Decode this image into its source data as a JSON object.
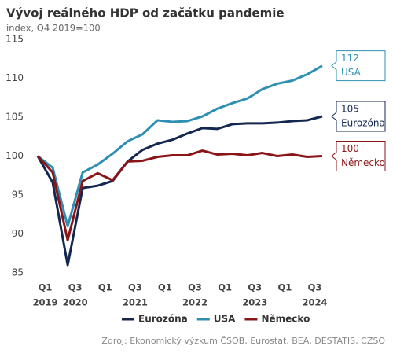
{
  "chart_data": {
    "type": "line",
    "title": "Vývoj reálného HDP od začátku pandemie",
    "subtitle": "index, Q4 2019=100",
    "source": "Zdroj: Ekonomický výzkum ČSOB, Eurostat, BEA, DESTATIS, CZSO",
    "categories": [
      null,
      "Q1",
      null,
      "Q3",
      null,
      "Q1",
      null,
      "Q3",
      null,
      "Q1",
      null,
      "Q3",
      null,
      "Q1",
      null,
      "Q3",
      null,
      "Q1",
      null,
      "Q3"
    ],
    "years": [
      null,
      "2019",
      null,
      "2020",
      null,
      null,
      null,
      "2021",
      null,
      null,
      null,
      "2022",
      null,
      null,
      null,
      "2023",
      null,
      null,
      null,
      "2024"
    ],
    "ylim": [
      85,
      115
    ],
    "yticks": [
      85,
      90,
      95,
      100,
      105,
      110,
      115
    ],
    "reference_line": 100,
    "series": [
      {
        "name": "Eurozóna",
        "color": "#14284f",
        "end_label": "105",
        "values": [
          100,
          96.6,
          86.0,
          95.9,
          96.2,
          96.8,
          99.3,
          100.8,
          101.6,
          102.1,
          102.9,
          103.6,
          103.5,
          104.1,
          104.2,
          104.2,
          104.3,
          104.5,
          104.6,
          105.1
        ]
      },
      {
        "name": "USA",
        "color": "#2f8fb3",
        "end_label": "112",
        "values": [
          100,
          98.5,
          91.0,
          97.9,
          98.9,
          100.3,
          101.9,
          102.8,
          104.6,
          104.4,
          104.5,
          105.1,
          106.1,
          106.8,
          107.4,
          108.6,
          109.3,
          109.7,
          110.5,
          111.6
        ]
      },
      {
        "name": "Německo",
        "color": "#8a1518",
        "end_label": "100",
        "values": [
          100,
          97.9,
          89.2,
          96.8,
          97.8,
          96.9,
          99.3,
          99.4,
          99.9,
          100.1,
          100.1,
          100.7,
          100.2,
          100.3,
          100.1,
          100.4,
          100.0,
          100.2,
          99.9,
          100.0
        ]
      }
    ]
  }
}
